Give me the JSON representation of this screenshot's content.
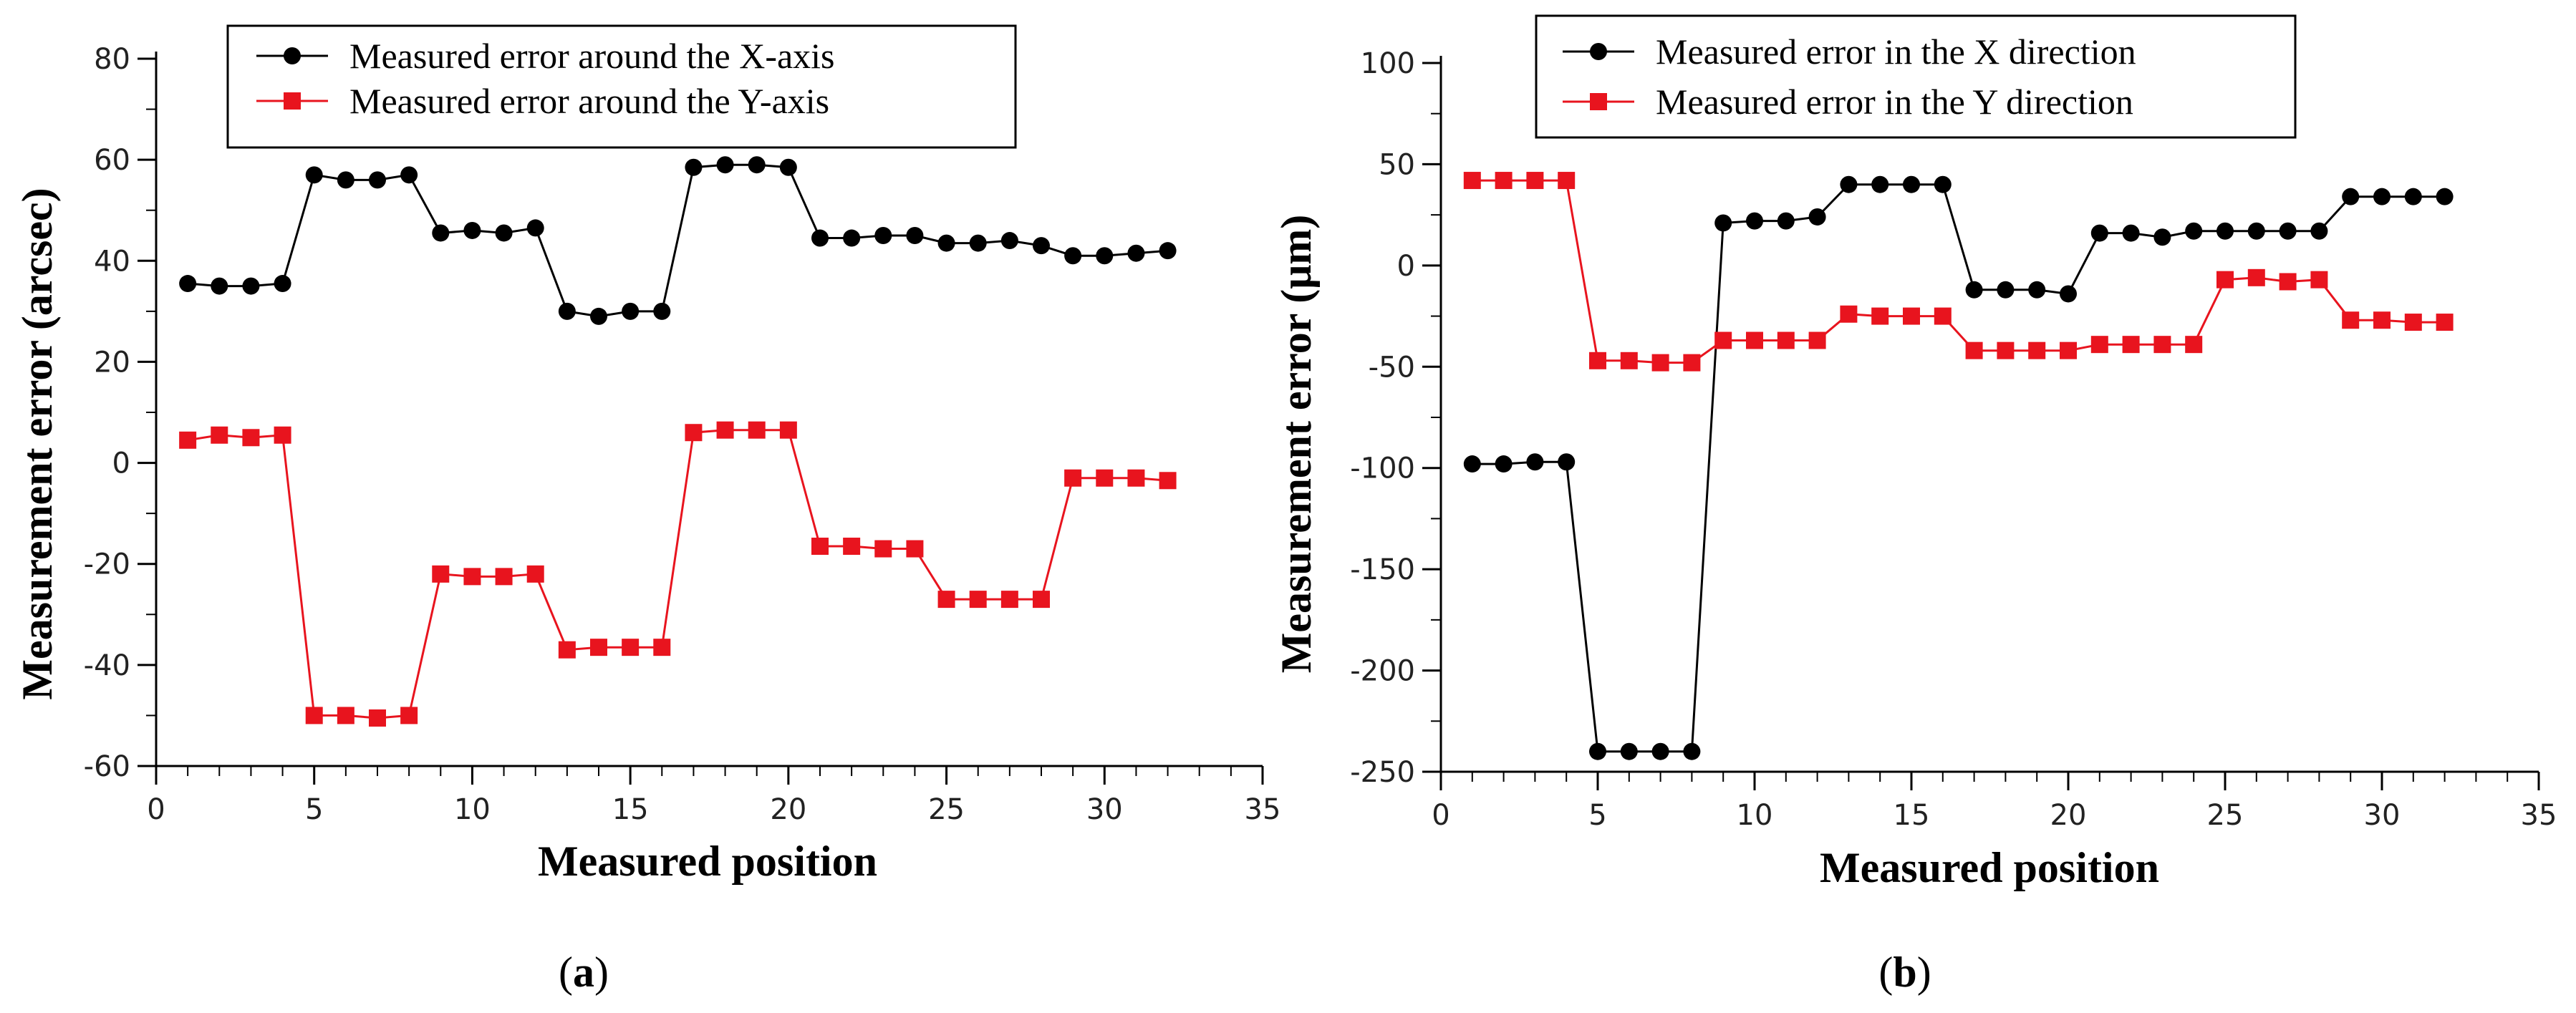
{
  "chart_data": [
    {
      "type": "line",
      "panel": "a",
      "caption_label": "a",
      "xlabel": "Measured position",
      "ylabel": "Measurement error (arcsec)",
      "xlim": [
        0,
        35
      ],
      "ylim": [
        -60,
        80
      ],
      "xticks": [
        0,
        5,
        10,
        15,
        20,
        25,
        30,
        35
      ],
      "yticks": [
        -60,
        -40,
        -20,
        0,
        20,
        40,
        60,
        80
      ],
      "x_minor_step": 1,
      "y_minor_step": 10,
      "legend_position": "top-center",
      "x": [
        1,
        2,
        3,
        4,
        5,
        6,
        7,
        8,
        9,
        10,
        11,
        12,
        13,
        14,
        15,
        16,
        17,
        18,
        19,
        20,
        21,
        22,
        23,
        24,
        25,
        26,
        27,
        28,
        29,
        30,
        31,
        32
      ],
      "series": [
        {
          "name": "Measured error around the X-axis",
          "color": "#000000",
          "marker": "circle",
          "values": [
            35.5,
            35,
            35,
            35.5,
            57,
            56,
            56,
            57,
            45.5,
            46,
            45.5,
            46.5,
            30,
            29,
            30,
            30,
            58.5,
            59,
            59,
            58.5,
            44.5,
            44.5,
            45,
            45,
            43.5,
            43.5,
            44,
            43,
            41,
            41,
            41.5,
            42
          ]
        },
        {
          "name": "Measured error around the Y-axis",
          "color": "#e8141e",
          "marker": "square",
          "values": [
            4.5,
            5.5,
            5,
            5.5,
            -50,
            -50,
            -50.5,
            -50,
            -22,
            -22.5,
            -22.5,
            -22,
            -37,
            -36.5,
            -36.5,
            -36.5,
            6,
            6.5,
            6.5,
            6.5,
            -16.5,
            -16.5,
            -17,
            -17,
            -27,
            -27,
            -27,
            -27,
            -3,
            -3,
            -3,
            -3.5
          ]
        }
      ]
    },
    {
      "type": "line",
      "panel": "b",
      "caption_label": "b",
      "xlabel": "Measured position",
      "ylabel": "Measurement error (μm)",
      "xlim": [
        0,
        35
      ],
      "ylim": [
        -250,
        100
      ],
      "xticks": [
        0,
        5,
        10,
        15,
        20,
        25,
        30,
        35
      ],
      "yticks": [
        -250,
        -200,
        -150,
        -100,
        -50,
        0,
        50,
        100
      ],
      "x_minor_step": 1,
      "y_minor_step": 25,
      "legend_position": "top-center",
      "x": [
        1,
        2,
        3,
        4,
        5,
        6,
        7,
        8,
        9,
        10,
        11,
        12,
        13,
        14,
        15,
        16,
        17,
        18,
        19,
        20,
        21,
        22,
        23,
        24,
        25,
        26,
        27,
        28,
        29,
        30,
        31,
        32
      ],
      "series": [
        {
          "name": "Measured error in the X direction",
          "color": "#000000",
          "marker": "circle",
          "values": [
            -98,
            -98,
            -97,
            -97,
            -240,
            -240,
            -240,
            -240,
            21,
            22,
            22,
            24,
            40,
            40,
            40,
            40,
            -12,
            -12,
            -12,
            -14,
            16,
            16,
            14,
            17,
            17,
            17,
            17,
            17,
            34,
            34,
            34,
            34
          ]
        },
        {
          "name": "Measured error in the Y direction",
          "color": "#e8141e",
          "marker": "square",
          "values": [
            42,
            42,
            42,
            42,
            -47,
            -47,
            -48,
            -48,
            -37,
            -37,
            -37,
            -37,
            -24,
            -25,
            -25,
            -25,
            -42,
            -42,
            -42,
            -42,
            -39,
            -39,
            -39,
            -39,
            -7,
            -6,
            -8,
            -7,
            -27,
            -27,
            -28,
            -28
          ]
        }
      ]
    }
  ]
}
